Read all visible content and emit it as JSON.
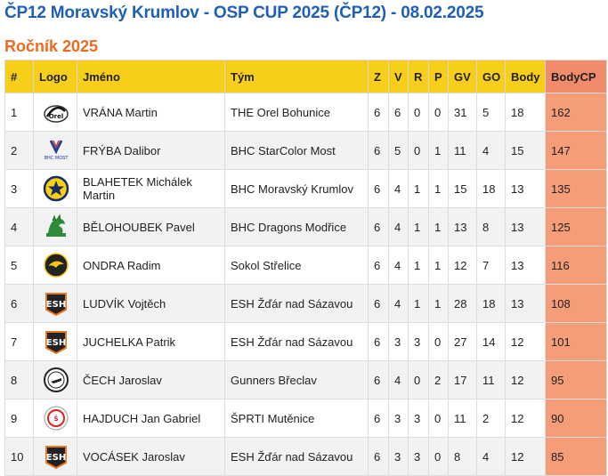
{
  "title": "ČP12 Moravský Krumlov - OSP CUP 2025 (ČP12) - 08.02.2025",
  "section": "Ročník 2025",
  "columns": [
    "#",
    "Logo",
    "Jméno",
    "Tým",
    "Z",
    "V",
    "R",
    "P",
    "GV",
    "GO",
    "Body",
    "BodyCP"
  ],
  "rows": [
    {
      "rank": "1",
      "logo": "orel-logo",
      "name": "VRÁNA Martin",
      "team": "THE Orel Bohunice",
      "z": "6",
      "v": "6",
      "r": "0",
      "p": "0",
      "gv": "31",
      "go": "5",
      "body": "18",
      "bodycp": "162"
    },
    {
      "rank": "2",
      "logo": "bhc-most-logo",
      "name": "FRÝBA Dalibor",
      "team": "BHC StarColor Most",
      "z": "6",
      "v": "5",
      "r": "0",
      "p": "1",
      "gv": "11",
      "go": "4",
      "body": "15",
      "bodycp": "147"
    },
    {
      "rank": "3",
      "logo": "moravsky-krumlov-logo",
      "name": "BLAHETEK Michálek Martin",
      "team": "BHC Moravský Krumlov",
      "z": "6",
      "v": "4",
      "r": "1",
      "p": "1",
      "gv": "15",
      "go": "18",
      "body": "13",
      "bodycp": "135"
    },
    {
      "rank": "4",
      "logo": "dragons-logo",
      "name": "BĚLOHOUBEK Pavel",
      "team": "BHC Dragons Modřice",
      "z": "6",
      "v": "4",
      "r": "1",
      "p": "1",
      "gv": "13",
      "go": "8",
      "body": "13",
      "bodycp": "125"
    },
    {
      "rank": "5",
      "logo": "sokol-strelice-logo",
      "name": "ONDRA Radim",
      "team": "Sokol Střelice",
      "z": "6",
      "v": "4",
      "r": "1",
      "p": "1",
      "gv": "12",
      "go": "7",
      "body": "13",
      "bodycp": "116"
    },
    {
      "rank": "6",
      "logo": "esh-logo",
      "name": "LUDVÍK Vojtěch",
      "team": "ESH Žďár nad Sázavou",
      "z": "6",
      "v": "4",
      "r": "1",
      "p": "1",
      "gv": "28",
      "go": "18",
      "body": "13",
      "bodycp": "108"
    },
    {
      "rank": "7",
      "logo": "esh-logo",
      "name": "JUCHELKA Patrik",
      "team": "ESH Žďár nad Sázavou",
      "z": "6",
      "v": "3",
      "r": "3",
      "p": "0",
      "gv": "27",
      "go": "14",
      "body": "12",
      "bodycp": "101"
    },
    {
      "rank": "8",
      "logo": "gunners-logo",
      "name": "ČECH Jaroslav",
      "team": "Gunners Břeclav",
      "z": "6",
      "v": "4",
      "r": "0",
      "p": "2",
      "gv": "17",
      "go": "11",
      "body": "12",
      "bodycp": "95"
    },
    {
      "rank": "9",
      "logo": "sprti-logo",
      "name": "HAJDUCH Jan Gabriel",
      "team": "ŠPRTI Mutěnice",
      "z": "6",
      "v": "3",
      "r": "3",
      "p": "0",
      "gv": "11",
      "go": "2",
      "body": "12",
      "bodycp": "90"
    },
    {
      "rank": "10",
      "logo": "esh-logo",
      "name": "VOCÁSEK Jaroslav",
      "team": "ESH Žďár nad Sázavou",
      "z": "6",
      "v": "3",
      "r": "3",
      "p": "0",
      "gv": "8",
      "go": "4",
      "body": "12",
      "bodycp": "85"
    }
  ],
  "colors": {
    "header": "#f7cf1a",
    "bodycp": "#f59c78",
    "title": "#1f5fb4",
    "section": "#ef6b1f"
  }
}
